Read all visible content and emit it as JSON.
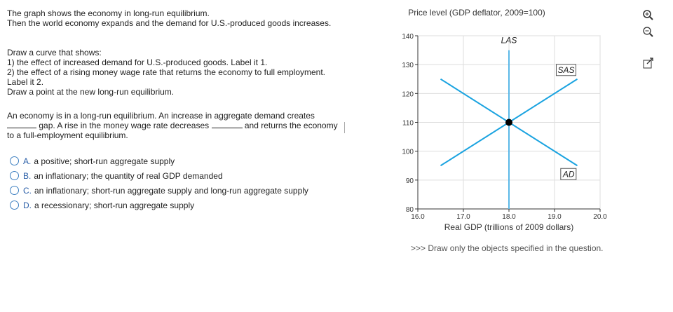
{
  "question": {
    "intro": [
      "The graph shows the economy in long-run equilibrium.",
      "Then the world economy expands and the demand for U.S.-produced goods increases."
    ],
    "instructions": [
      "Draw a curve that shows:",
      "1) the effect of increased demand for U.S.-produced goods. Label it 1.",
      "2) the effect of a rising money wage rate that returns the economy to full employment. Label it 2.",
      "Draw a point at the new long-run equilibrium."
    ],
    "fill_in": [
      "An economy is in a long-run equilibrium. An increase in aggregate demand creates",
      "gap. A rise in the money wage rate decreases",
      "and returns the economy to a full-employment equilibrium."
    ],
    "options": [
      {
        "letter": "A.",
        "text": "a positive; short-run aggregate supply"
      },
      {
        "letter": "B.",
        "text": "an inflationary; the quantity of real GDP demanded"
      },
      {
        "letter": "C.",
        "text": "an inflationary; short-run aggregate supply and long-run aggregate supply"
      },
      {
        "letter": "D.",
        "text": "a recessionary; short-run aggregate supply"
      }
    ],
    "hint": ">>> Draw only the objects specified in the question."
  },
  "chart_data": {
    "type": "line",
    "y_label": "Price level (GDP deflator, 2009=100)",
    "x_label": "Real GDP (trillions of 2009 dollars)",
    "xlim": [
      16,
      20
    ],
    "xticks": [
      {
        "value": 16,
        "label": "16.0"
      },
      {
        "value": 17,
        "label": "17.0"
      },
      {
        "value": 18,
        "label": "18.0"
      },
      {
        "value": 19,
        "label": "19.0"
      },
      {
        "value": 20,
        "label": "20.0"
      }
    ],
    "ylim": [
      80,
      140
    ],
    "yticks": [
      80,
      90,
      100,
      110,
      120,
      130,
      140
    ],
    "grid": true,
    "series": [
      {
        "name": "LAS",
        "color": "#5bb8e8",
        "x": [
          18,
          18
        ],
        "values": [
          80,
          135
        ]
      },
      {
        "name": "SAS",
        "color": "#1aa3e0",
        "x": [
          16.5,
          19.5
        ],
        "values": [
          95,
          125
        ]
      },
      {
        "name": "AD",
        "color": "#1aa3e0",
        "x": [
          16.5,
          19.5
        ],
        "values": [
          125,
          95
        ]
      }
    ],
    "points": [
      {
        "x": 18,
        "y": 110,
        "color": "#000000"
      }
    ]
  }
}
